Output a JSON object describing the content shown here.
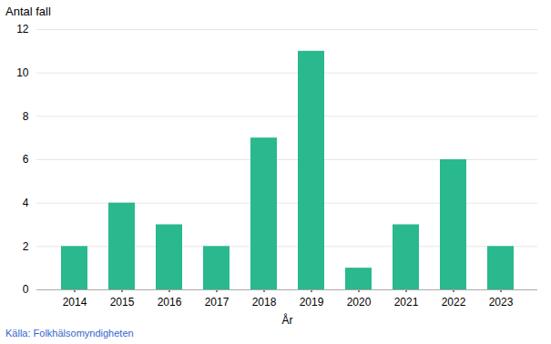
{
  "chart_data": {
    "type": "bar",
    "ylabel": "Antal fall",
    "xlabel": "År",
    "source": "Källa: Folkhälsomyndigheten",
    "categories": [
      "2014",
      "2015",
      "2016",
      "2017",
      "2018",
      "2019",
      "2020",
      "2021",
      "2022",
      "2023"
    ],
    "values": [
      2,
      4,
      3,
      2,
      7,
      11,
      1,
      3,
      6,
      2
    ],
    "color": "#2ab88e",
    "ylim": [
      0,
      12
    ],
    "yticks": [
      0,
      2,
      4,
      6,
      8,
      10,
      12
    ],
    "grid": true
  }
}
